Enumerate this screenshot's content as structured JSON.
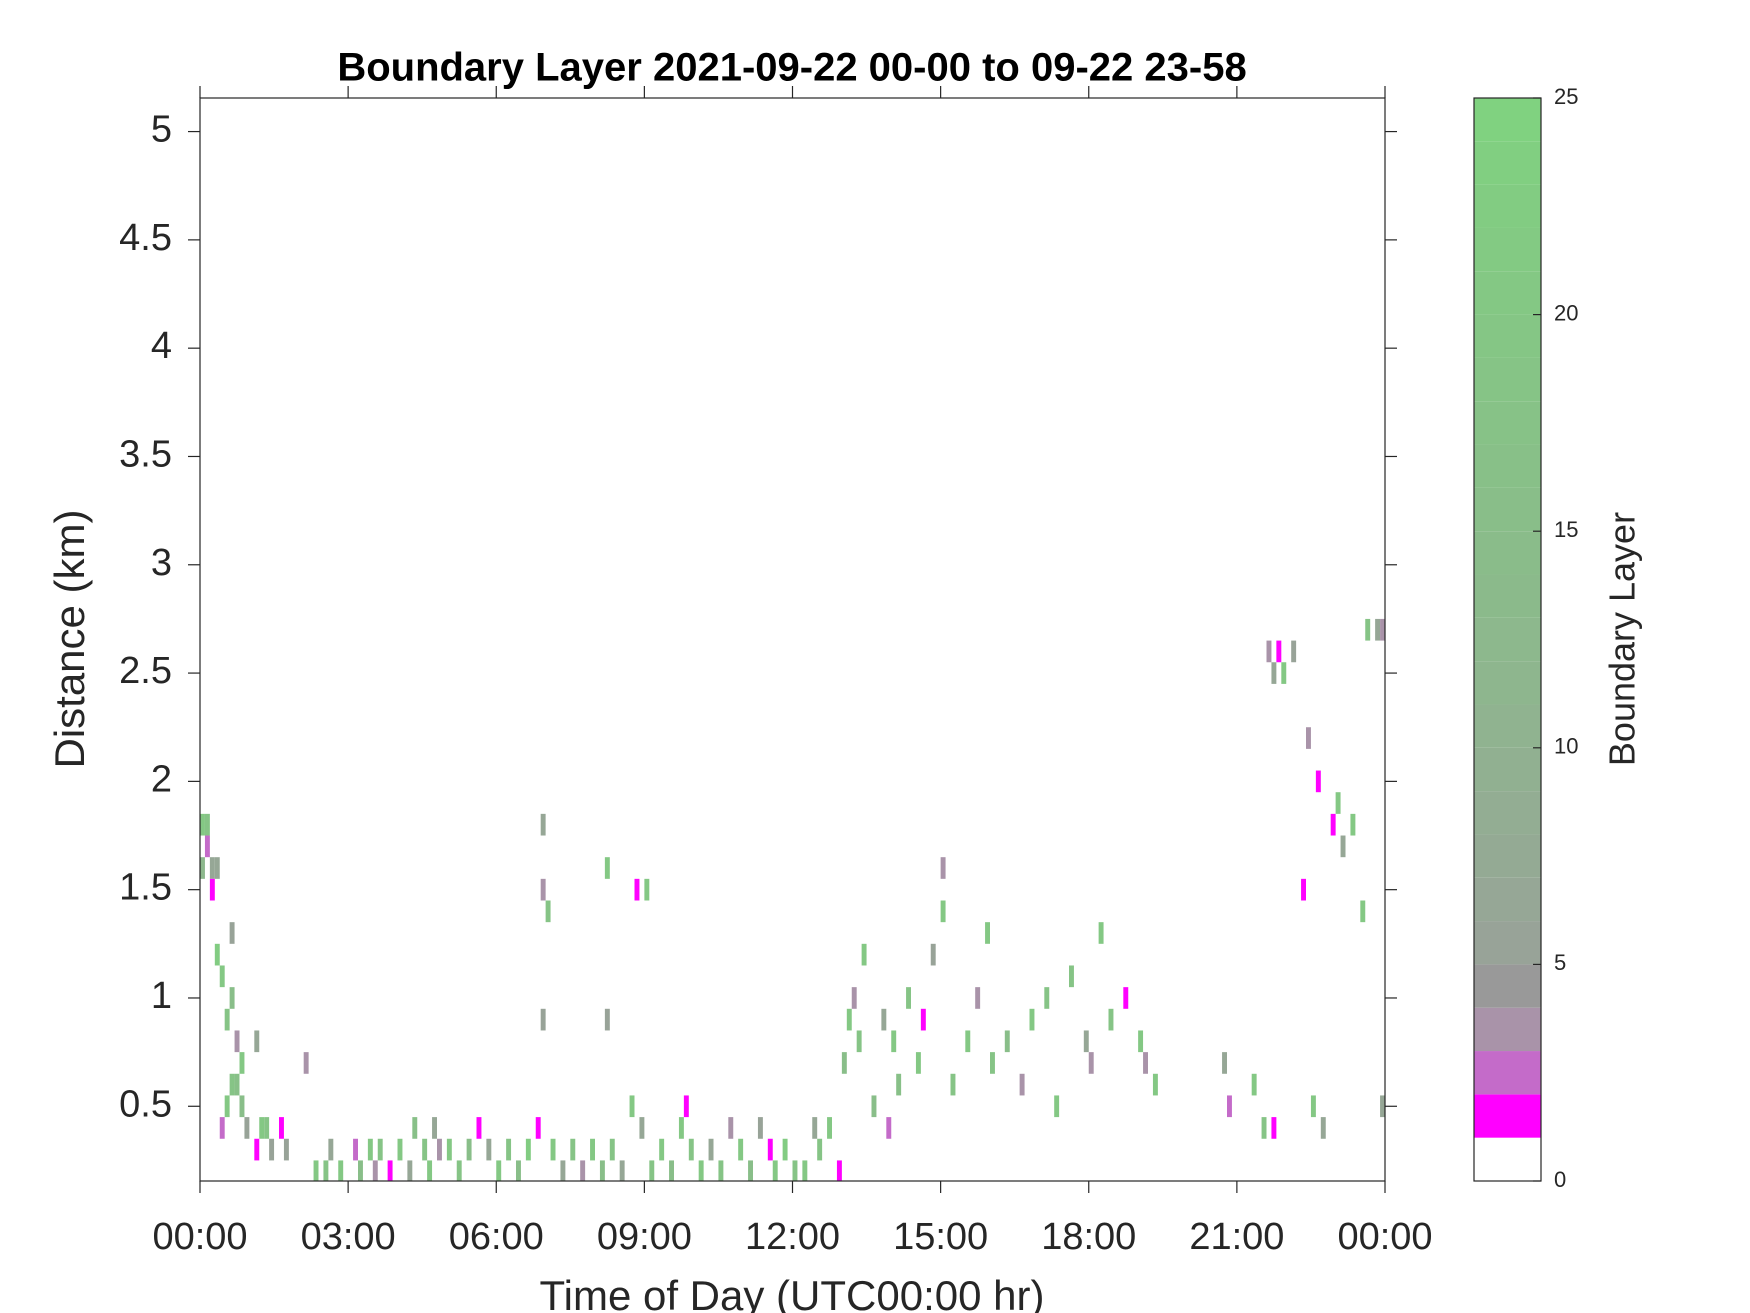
{
  "chart_data": {
    "type": "heatmap",
    "title": "Boundary Layer 2021-09-22 00-00 to 09-22 23-58",
    "x_label": "Time of Day (UTC00:00 hr)",
    "y_label": "Distance (km)",
    "colorbar_label": "Boundary Layer",
    "xlim": [
      0,
      24
    ],
    "xticks": [
      {
        "value": 0,
        "label": "00:00"
      },
      {
        "value": 3,
        "label": "03:00"
      },
      {
        "value": 6,
        "label": "06:00"
      },
      {
        "value": 9,
        "label": "09:00"
      },
      {
        "value": 12,
        "label": "12:00"
      },
      {
        "value": 15,
        "label": "15:00"
      },
      {
        "value": 18,
        "label": "18:00"
      },
      {
        "value": 21,
        "label": "21:00"
      },
      {
        "value": 24,
        "label": "00:00"
      }
    ],
    "ylim": [
      0.155,
      5.155
    ],
    "yticks": [
      0.5,
      1,
      1.5,
      2,
      2.5,
      3,
      3.5,
      4,
      4.5,
      5
    ],
    "clim": [
      0,
      25
    ],
    "cticks": [
      0,
      5,
      10,
      15,
      20,
      25
    ],
    "colormap": [
      "#ffffff",
      "#ff00ff",
      "#c46bc9",
      "#a993a9",
      "#999999",
      "#98a398",
      "#96a796",
      "#94aa94",
      "#93ad93",
      "#91b091",
      "#90b390",
      "#8eb68e",
      "#8db88d",
      "#8bba8b",
      "#8abc8a",
      "#89be89",
      "#88c088",
      "#87c287",
      "#86c486",
      "#85c685",
      "#84c884",
      "#83ca83",
      "#82cc82",
      "#81cf81",
      "#80d280"
    ],
    "cells": {
      "x": [
        0,
        0.1,
        0.1,
        0,
        0.2,
        0.3,
        0.2,
        0.3,
        0.4,
        0.6,
        0.6,
        0.5,
        0.7,
        0.8,
        0.6,
        0.7,
        0.8,
        0.4,
        0.5,
        0.9,
        1.1,
        1.2,
        1.3,
        1.1,
        1.4,
        1.6,
        1.7,
        2.1,
        2.3,
        2.5,
        2.6,
        2.8,
        3.1,
        3.2,
        3.4,
        3.5,
        3.6,
        3.8,
        4.0,
        4.2,
        4.3,
        4.5,
        4.6,
        4.7,
        4.8,
        5.0,
        5.2,
        5.4,
        5.6,
        5.8,
        6.0,
        6.2,
        6.4,
        6.6,
        6.8,
        6.9,
        6.9,
        7.0,
        6.9,
        7.1,
        7.3,
        7.5,
        7.7,
        7.9,
        8.1,
        8.2,
        8.2,
        8.3,
        8.5,
        8.7,
        8.8,
        8.9,
        9.0,
        9.1,
        9.3,
        9.5,
        9.7,
        9.8,
        9.9,
        10.1,
        10.3,
        10.5,
        10.7,
        10.9,
        11.1,
        11.3,
        11.5,
        11.6,
        11.8,
        12.0,
        12.2,
        12.4,
        12.5,
        12.7,
        12.9,
        13.0,
        13.1,
        13.2,
        13.3,
        13.4,
        13.6,
        13.8,
        13.9,
        14.0,
        14.1,
        14.3,
        14.5,
        14.6,
        14.8,
        15.0,
        15.0,
        15.2,
        15.5,
        15.7,
        15.9,
        16.0,
        16.3,
        16.6,
        16.8,
        17.1,
        17.3,
        17.6,
        17.9,
        18.0,
        18.2,
        18.4,
        18.7,
        19.0,
        19.1,
        19.3,
        20.7,
        20.8,
        21.3,
        21.5,
        21.7,
        21.6,
        21.7,
        21.8,
        21.9,
        22.1,
        22.4,
        22.3,
        22.5,
        22.7,
        22.6,
        22.9,
        23.0,
        23.1,
        23.3,
        23.5,
        23.6,
        23.8,
        23.9,
        23.9
      ],
      "y": [
        1.8,
        1.8,
        1.7,
        1.6,
        1.6,
        1.6,
        1.5,
        1.2,
        1.1,
        1.3,
        1.0,
        0.9,
        0.8,
        0.7,
        0.6,
        0.6,
        0.5,
        0.4,
        0.5,
        0.4,
        0.8,
        0.4,
        0.4,
        0.3,
        0.3,
        0.4,
        0.3,
        0.7,
        0.2,
        0.2,
        0.3,
        0.2,
        0.3,
        0.2,
        0.3,
        0.2,
        0.3,
        0.2,
        0.3,
        0.2,
        0.4,
        0.3,
        0.2,
        0.4,
        0.3,
        0.3,
        0.2,
        0.3,
        0.4,
        0.3,
        0.2,
        0.3,
        0.2,
        0.3,
        0.4,
        1.8,
        1.5,
        1.4,
        0.9,
        0.3,
        0.2,
        0.3,
        0.2,
        0.3,
        0.2,
        1.6,
        0.9,
        0.3,
        0.2,
        0.5,
        1.5,
        0.4,
        1.5,
        0.2,
        0.3,
        0.2,
        0.4,
        0.5,
        0.3,
        0.2,
        0.3,
        0.2,
        0.4,
        0.3,
        0.2,
        0.4,
        0.3,
        0.2,
        0.3,
        0.2,
        0.2,
        0.4,
        0.3,
        0.4,
        0.2,
        0.7,
        0.9,
        1.0,
        0.8,
        1.2,
        0.5,
        0.9,
        0.4,
        0.8,
        0.6,
        1.0,
        0.7,
        0.9,
        1.2,
        1.4,
        1.6,
        0.6,
        0.8,
        1.0,
        1.3,
        0.7,
        0.8,
        0.6,
        0.9,
        1.0,
        0.5,
        1.1,
        0.8,
        0.7,
        1.3,
        0.9,
        1.0,
        0.8,
        0.7,
        0.6,
        0.7,
        0.5,
        0.6,
        0.4,
        0.4,
        2.6,
        2.5,
        2.6,
        2.5,
        2.6,
        2.2,
        1.5,
        0.5,
        0.4,
        2.0,
        1.8,
        1.9,
        1.7,
        1.8,
        1.4,
        2.7,
        2.7,
        2.7,
        0.5
      ],
      "values": [
        20,
        18,
        2,
        12,
        6,
        6,
        1,
        22,
        20,
        5,
        15,
        18,
        3,
        20,
        18,
        16,
        15,
        2,
        20,
        5,
        6,
        20,
        18,
        1,
        5,
        1,
        5,
        3,
        20,
        18,
        6,
        20,
        2,
        15,
        20,
        3,
        18,
        1,
        20,
        6,
        16,
        18,
        20,
        6,
        3,
        20,
        18,
        15,
        1,
        6,
        20,
        18,
        15,
        22,
        1,
        6,
        3,
        18,
        5,
        20,
        6,
        18,
        3,
        20,
        15,
        20,
        5,
        18,
        6,
        20,
        1,
        6,
        20,
        18,
        20,
        15,
        20,
        1,
        18,
        20,
        6,
        18,
        3,
        20,
        15,
        5,
        1,
        20,
        22,
        18,
        20,
        6,
        18,
        20,
        1,
        15,
        20,
        3,
        18,
        20,
        15,
        6,
        2,
        20,
        16,
        18,
        20,
        1,
        5,
        20,
        3,
        18,
        20,
        3,
        20,
        18,
        15,
        3,
        20,
        18,
        20,
        18,
        6,
        3,
        20,
        18,
        1,
        20,
        3,
        20,
        6,
        2,
        20,
        18,
        1,
        3,
        6,
        1,
        20,
        5,
        3,
        1,
        20,
        6,
        1,
        1,
        20,
        6,
        20,
        20,
        18,
        6,
        3,
        6
      ]
    }
  }
}
